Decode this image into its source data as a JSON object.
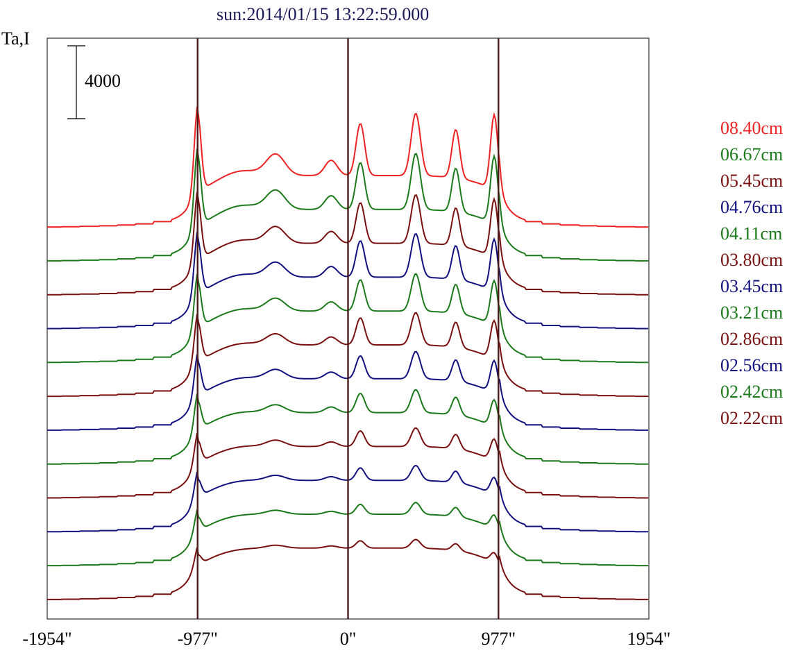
{
  "header": {
    "title": "sun:2014/01/15 13:22:59.000"
  },
  "chart_data": {
    "type": "line",
    "title": "sun:2014/01/15 13:22:59.000",
    "ylabel": "Ta,I",
    "xlabel": "",
    "scale_bar": {
      "label": "4000",
      "value": 4000
    },
    "xlim": [
      -1954,
      1954
    ],
    "x_ticks": [
      {
        "value": -1954,
        "label": "-1954\""
      },
      {
        "value": -977,
        "label": "-977\""
      },
      {
        "value": 0,
        "label": "0\""
      },
      {
        "value": 977,
        "label": "977\""
      },
      {
        "value": 1954,
        "label": "1954\""
      }
    ],
    "reference_lines_x": [
      -977,
      0,
      977
    ],
    "colors": {
      "red": "#ee2222",
      "green": "#1a7a1a",
      "maroon": "#7a0f0f",
      "blue": "#101080",
      "axis": "#000000",
      "ref": "#4a1a1a"
    },
    "legend": [
      {
        "label": "08.40cm",
        "color": "#ee2222"
      },
      {
        "label": "06.67cm",
        "color": "#1a7a1a"
      },
      {
        "label": "05.45cm",
        "color": "#7a0f0f"
      },
      {
        "label": "04.76cm",
        "color": "#101080"
      },
      {
        "label": "04.11cm",
        "color": "#1a7a1a"
      },
      {
        "label": "03.80cm",
        "color": "#7a0f0f"
      },
      {
        "label": "03.45cm",
        "color": "#101080"
      },
      {
        "label": "03.21cm",
        "color": "#1a7a1a"
      },
      {
        "label": "02.86cm",
        "color": "#7a0f0f"
      },
      {
        "label": "02.56cm",
        "color": "#101080"
      },
      {
        "label": "02.42cm",
        "color": "#1a7a1a"
      },
      {
        "label": "02.22cm",
        "color": "#7a0f0f"
      }
    ],
    "peak_x": [
      -977,
      -470,
      80,
      440,
      700,
      950
    ],
    "series": [
      {
        "color": "#ee2222",
        "offset": 0,
        "strength": 1.0
      },
      {
        "color": "#1a7a1a",
        "offset": 1,
        "strength": 0.9
      },
      {
        "color": "#7a0f0f",
        "offset": 2,
        "strength": 0.78
      },
      {
        "color": "#101080",
        "offset": 3,
        "strength": 0.7
      },
      {
        "color": "#1a7a1a",
        "offset": 4,
        "strength": 0.6
      },
      {
        "color": "#7a0f0f",
        "offset": 5,
        "strength": 0.52
      },
      {
        "color": "#101080",
        "offset": 6,
        "strength": 0.44
      },
      {
        "color": "#1a7a1a",
        "offset": 7,
        "strength": 0.37
      },
      {
        "color": "#7a0f0f",
        "offset": 8,
        "strength": 0.3
      },
      {
        "color": "#101080",
        "offset": 9,
        "strength": 0.24
      },
      {
        "color": "#1a7a1a",
        "offset": 10,
        "strength": 0.19
      },
      {
        "color": "#7a0f0f",
        "offset": 11,
        "strength": 0.14
      }
    ]
  }
}
